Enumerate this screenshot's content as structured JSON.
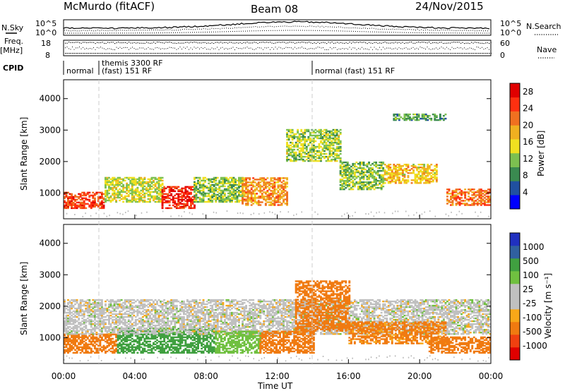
{
  "header": {
    "station": "McMurdo (fitACF)",
    "beam": "Beam 08",
    "date": "24/Nov/2015"
  },
  "top_panel": {
    "nsky_label": "N.Sky",
    "nsky_ticks": [
      "10^5",
      "10^0"
    ],
    "nsearch_label": "N.Search",
    "nsearch_ticks": [
      "10^5",
      "10^0"
    ],
    "freq_label": "Freq.",
    "freq_unit": "[MHz]",
    "freq_ticks": [
      "18",
      "8"
    ],
    "nave_label": "Nave",
    "nave_ticks": [
      "60",
      "0"
    ],
    "cpid_label": "CPID",
    "cpid_segments": [
      {
        "start_h": 0.0,
        "label": "normal"
      },
      {
        "start_h": 1.83,
        "label": "themis 3300 RF"
      },
      {
        "start_h": 1.83,
        "label": "(fast) 151 RF"
      },
      {
        "start_h": 14.0,
        "label": "normal (fast) 151 RF"
      }
    ]
  },
  "icons": {
    "nsky_line": "solid-line-icon",
    "nsearch_line": "dotted-line-icon",
    "nave_line": "dotted-line-icon"
  },
  "colors": {
    "power_scale": [
      "#0000ff",
      "#2050a0",
      "#3a8a50",
      "#7cc050",
      "#f0e020",
      "#f0b020",
      "#f07020",
      "#ff3010",
      "#e00000"
    ],
    "velocity_scale": [
      "#e00000",
      "#f04010",
      "#f07a10",
      "#f8a818",
      "#c0c0c0",
      "#c0c0c0",
      "#70c040",
      "#40a040",
      "#3060a0",
      "#2030c0"
    ],
    "ground_scatter": "#b8b8b8"
  },
  "chart_data": [
    {
      "type": "heatmap",
      "title": "Power",
      "xlabel": "Time UT",
      "ylabel": "Slant Range [km]",
      "x_ticks": [
        "00:00",
        "04:00",
        "08:00",
        "12:00",
        "16:00",
        "20:00",
        "00:00"
      ],
      "xlim_hours": [
        0,
        24
      ],
      "y_ticks": [
        1000,
        2000,
        3000,
        4000
      ],
      "ylim": [
        180,
        4600
      ],
      "colorbar_label": "Power [dB]",
      "colorbar_ticks": [
        4,
        8,
        12,
        16,
        20,
        24,
        28
      ],
      "colorbar_range": [
        0,
        30
      ],
      "regions": [
        {
          "t0": 0.0,
          "t1": 2.3,
          "r0": 500,
          "r1": 1000,
          "value": 24
        },
        {
          "t0": 2.3,
          "t1": 5.5,
          "r0": 700,
          "r1": 1500,
          "value": 14
        },
        {
          "t0": 5.5,
          "t1": 7.3,
          "r0": 500,
          "r1": 1200,
          "value": 26
        },
        {
          "t0": 7.3,
          "t1": 10.0,
          "r0": 700,
          "r1": 1500,
          "value": 12
        },
        {
          "t0": 10.0,
          "t1": 12.5,
          "r0": 600,
          "r1": 1500,
          "value": 20
        },
        {
          "t0": 12.5,
          "t1": 15.5,
          "r0": 2000,
          "r1": 3000,
          "value": 13
        },
        {
          "t0": 15.5,
          "t1": 18.0,
          "r0": 1100,
          "r1": 2000,
          "value": 12
        },
        {
          "t0": 18.0,
          "t1": 21.0,
          "r0": 1300,
          "r1": 1900,
          "value": 17
        },
        {
          "t0": 18.5,
          "t1": 21.5,
          "r0": 3300,
          "r1": 3500,
          "value": 10
        },
        {
          "t0": 21.5,
          "t1": 24.0,
          "r0": 600,
          "r1": 1100,
          "value": 22
        }
      ]
    },
    {
      "type": "heatmap",
      "title": "Velocity",
      "xlabel": "Time UT",
      "ylabel": "Slant Range [km]",
      "x_ticks": [
        "00:00",
        "04:00",
        "08:00",
        "12:00",
        "16:00",
        "20:00",
        "00:00"
      ],
      "xlim_hours": [
        0,
        24
      ],
      "y_ticks": [
        1000,
        2000,
        3000,
        4000
      ],
      "ylim": [
        180,
        4600
      ],
      "colorbar_label": "Velocity [m s⁻¹]",
      "colorbar_ticks": [
        "1000",
        "500",
        "100",
        "25",
        "-25",
        "-100",
        "-500",
        "-1000"
      ],
      "regions": [
        {
          "t0": 0.0,
          "t1": 3.0,
          "r0": 500,
          "r1": 1100,
          "value": -200
        },
        {
          "t0": 3.0,
          "t1": 8.5,
          "r0": 500,
          "r1": 1300,
          "value": 150
        },
        {
          "t0": 0.0,
          "t1": 24.0,
          "r0": 1100,
          "r1": 2200,
          "value": 0
        },
        {
          "t0": 8.5,
          "t1": 11.0,
          "r0": 500,
          "r1": 1200,
          "value": 60
        },
        {
          "t0": 11.0,
          "t1": 14.0,
          "r0": 500,
          "r1": 1200,
          "value": -150
        },
        {
          "t0": 13.0,
          "t1": 16.0,
          "r0": 1200,
          "r1": 2800,
          "value": -300
        },
        {
          "t0": 16.0,
          "t1": 21.5,
          "r0": 800,
          "r1": 1500,
          "value": -120
        },
        {
          "t0": 20.5,
          "t1": 24.0,
          "r0": 500,
          "r1": 1000,
          "value": -400
        }
      ]
    }
  ]
}
